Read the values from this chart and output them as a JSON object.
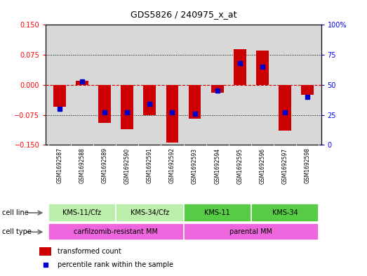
{
  "title": "GDS5826 / 240975_x_at",
  "samples": [
    "GSM1692587",
    "GSM1692588",
    "GSM1692589",
    "GSM1692590",
    "GSM1692591",
    "GSM1692592",
    "GSM1692593",
    "GSM1692594",
    "GSM1692595",
    "GSM1692596",
    "GSM1692597",
    "GSM1692598"
  ],
  "transformed_count": [
    -0.055,
    0.01,
    -0.095,
    -0.11,
    -0.075,
    -0.145,
    -0.085,
    -0.02,
    0.09,
    0.085,
    -0.115,
    -0.025
  ],
  "percentile_rank": [
    30,
    53,
    27,
    27,
    34,
    27,
    26,
    45,
    68,
    65,
    27,
    40
  ],
  "ylim_left": [
    -0.15,
    0.15
  ],
  "ylim_right": [
    0,
    100
  ],
  "yticks_left": [
    -0.15,
    -0.075,
    0,
    0.075,
    0.15
  ],
  "yticks_right": [
    0,
    25,
    50,
    75,
    100
  ],
  "cell_line_groups": [
    {
      "label": "KMS-11/Cfz",
      "start": 0,
      "end": 2,
      "color_light": "#CCFFCC"
    },
    {
      "label": "KMS-34/Cfz",
      "start": 3,
      "end": 5,
      "color_light": "#CCFFCC"
    },
    {
      "label": "KMS-11",
      "start": 6,
      "end": 8,
      "color_dark": "#55DD55"
    },
    {
      "label": "KMS-34",
      "start": 9,
      "end": 11,
      "color_dark": "#55DD55"
    }
  ],
  "cell_type_groups": [
    {
      "label": "carfilzomib-resistant MM",
      "start": 0,
      "end": 5,
      "color": "#EE66EE"
    },
    {
      "label": "parental MM",
      "start": 6,
      "end": 11,
      "color": "#EE66EE"
    }
  ],
  "bar_color": "#CC0000",
  "dot_color": "#0000CC",
  "zero_line_color": "#CC0000",
  "background_color": "#D8D8D8",
  "tick_bg_color": "#C8C8C8",
  "legend_items": [
    {
      "label": "transformed count",
      "color": "#CC0000"
    },
    {
      "label": "percentile rank within the sample",
      "color": "#0000CC"
    }
  ]
}
